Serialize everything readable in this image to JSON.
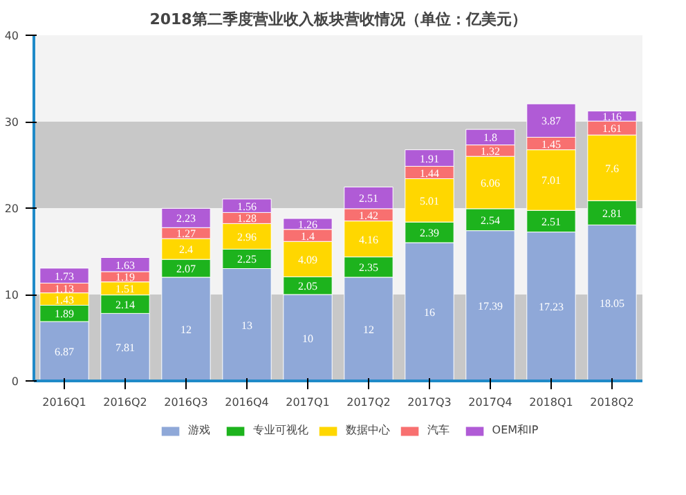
{
  "chart_data": {
    "type": "bar",
    "stacked": true,
    "title": "2018第二季度营业收入板块营收情况（单位：亿美元）",
    "categories": [
      "2016Q1",
      "2016Q2",
      "2016Q3",
      "2016Q4",
      "2017Q1",
      "2017Q2",
      "2017Q3",
      "2017Q4",
      "2018Q1",
      "2018Q2"
    ],
    "series": [
      {
        "name": "游戏",
        "color": "#8fa8d8",
        "values": [
          6.87,
          7.81,
          12,
          13,
          10,
          12,
          16,
          17.39,
          17.23,
          18.05
        ]
      },
      {
        "name": "专业可视化",
        "color": "#1db31d",
        "values": [
          1.89,
          2.14,
          2.07,
          2.25,
          2.05,
          2.35,
          2.39,
          2.54,
          2.51,
          2.81
        ]
      },
      {
        "name": "数据中心",
        "color": "#ffd700",
        "values": [
          1.43,
          1.51,
          2.4,
          2.96,
          4.09,
          4.16,
          5.01,
          6.06,
          7.01,
          7.6
        ]
      },
      {
        "name": "汽车",
        "color": "#f87070",
        "values": [
          1.13,
          1.19,
          1.27,
          1.28,
          1.4,
          1.42,
          1.44,
          1.32,
          1.45,
          1.61
        ]
      },
      {
        "name": "OEM和IP",
        "color": "#b05bd6",
        "values": [
          1.73,
          1.63,
          2.23,
          1.56,
          1.26,
          2.51,
          1.91,
          1.8,
          3.87,
          1.16
        ]
      }
    ],
    "ylim": [
      0,
      40
    ],
    "yticks": [
      0,
      10,
      20,
      30,
      40
    ],
    "bands": [
      {
        "axis": "y",
        "from": 0,
        "to": 10,
        "color": "#c8c8c8"
      },
      {
        "axis": "y",
        "from": 20,
        "to": 30,
        "color": "#c8c8c8"
      }
    ],
    "data_labels": true,
    "legend": "bottom"
  }
}
